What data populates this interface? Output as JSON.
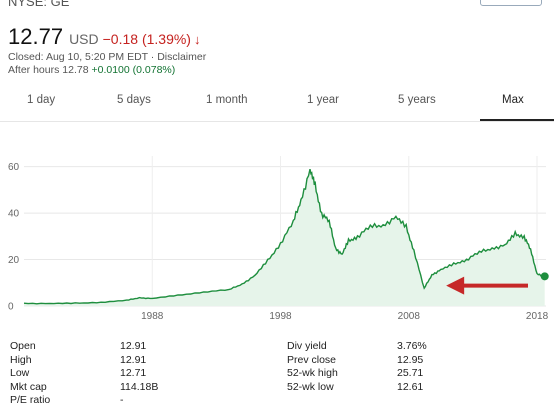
{
  "header": {
    "ticker": "NYSE: GE",
    "price": "12.77",
    "currency": "USD",
    "change": "−0.18 (1.39%)",
    "change_color": "#c5221f",
    "status": "Closed: Aug 10, 5:20 PM EDT · Disclaimer",
    "after_hours_label": "After hours 12.78",
    "after_hours_change": "+0.0100 (0.078%)",
    "after_hours_color": "#137333"
  },
  "tabs": [
    "1 day",
    "5 days",
    "1 month",
    "1 year",
    "5 years",
    "Max"
  ],
  "active_tab": "Max",
  "chart_data": {
    "type": "area",
    "x_tick_labels": [
      "1988",
      "1998",
      "2008",
      "2018"
    ],
    "y_tick_labels": [
      "0",
      "20",
      "40",
      "60"
    ],
    "ylim": [
      0,
      62
    ],
    "xlim": [
      1978.0,
      2018.7
    ],
    "line_color": "#1e8e3e",
    "fill_color": "#e6f4ea",
    "grid": true,
    "series": [
      {
        "x": [
          1978.0,
          1980.0,
          1982.0,
          1984.0,
          1986.0,
          1987.0,
          1988.0,
          1990.0,
          1992.0,
          1994.0,
          1995.0,
          1996.0,
          1997.0,
          1998.0,
          1999.0,
          1999.6,
          2000.3,
          2000.7,
          2001.2,
          2001.8,
          2002.3,
          2002.8,
          2003.3,
          2004.0,
          2005.0,
          2006.0,
          2007.0,
          2007.8,
          2008.4,
          2009.2,
          2009.8,
          2010.5,
          2011.5,
          2012.5,
          2013.5,
          2014.5,
          2015.5,
          2016.3,
          2017.0,
          2017.5,
          2018.0,
          2018.6
        ],
        "y": [
          1.2,
          1.0,
          1.2,
          1.6,
          2.4,
          3.6,
          3.2,
          4.6,
          6.0,
          7.0,
          9.5,
          13.0,
          19.5,
          27.0,
          36.0,
          46.0,
          58.0,
          52.0,
          40.0,
          36.0,
          25.0,
          22.0,
          28.0,
          30.0,
          34.0,
          35.0,
          38.0,
          34.0,
          24.0,
          7.5,
          13.5,
          15.5,
          18.0,
          20.0,
          23.0,
          25.0,
          26.0,
          31.0,
          30.0,
          24.0,
          14.0,
          12.77
        ]
      }
    ],
    "annotation": {
      "type": "arrow",
      "color": "#c62828",
      "points_to_x": 2009.2
    }
  },
  "stats": [
    {
      "label": "Open",
      "value": "12.91",
      "label2": "Div yield",
      "value2": "3.76%"
    },
    {
      "label": "High",
      "value": "12.91",
      "label2": "Prev close",
      "value2": "12.95"
    },
    {
      "label": "Low",
      "value": "12.71",
      "label2": "52-wk high",
      "value2": "25.71"
    },
    {
      "label": "Mkt cap",
      "value": "114.18B",
      "label2": "52-wk low",
      "value2": "12.61"
    },
    {
      "label": "P/E ratio",
      "value": "-",
      "label2": "",
      "value2": ""
    }
  ]
}
